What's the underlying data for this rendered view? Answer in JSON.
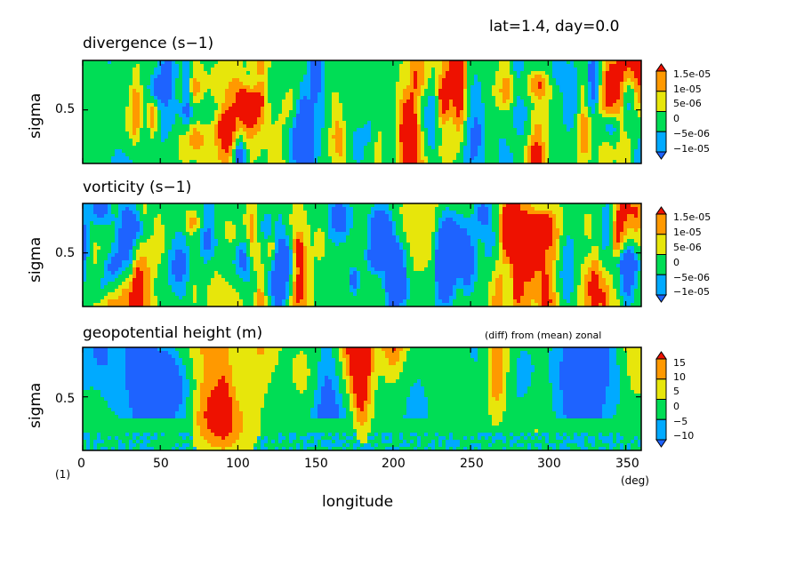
{
  "header": "lat=1.4, day=0.0",
  "footer_index": "(1)",
  "colors": [
    "#1e63ff",
    "#00aaff",
    "#00dd55",
    "#e7e60b",
    "#ff9900",
    "#ee1100"
  ],
  "chart_data": [
    {
      "type": "heatmap",
      "title": "divergence (s−1)",
      "ylabel": "sigma",
      "xlim": [
        0,
        360
      ],
      "ylim": [
        0.2,
        0.9
      ],
      "yticks": [
        "0.5"
      ],
      "levels": [
        -1.5e-05,
        -1e-05,
        -5e-06,
        0,
        5e-06,
        1e-05,
        1.5e-05
      ],
      "legend_labels": [
        "1.5e-05",
        "1e-05",
        "5e-06",
        "0",
        "−5e-06",
        "−1e-05"
      ],
      "seed": 11
    },
    {
      "type": "heatmap",
      "title": "vorticity (s−1)",
      "ylabel": "sigma",
      "xlim": [
        0,
        360
      ],
      "ylim": [
        0.2,
        0.9
      ],
      "yticks": [
        "0.5"
      ],
      "levels": [
        -1.5e-05,
        -1e-05,
        -5e-06,
        0,
        5e-06,
        1e-05,
        1.5e-05
      ],
      "legend_labels": [
        "1.5e-05",
        "1e-05",
        "5e-06",
        "0",
        "−5e-06",
        "−1e-05"
      ],
      "seed": 29
    },
    {
      "type": "heatmap",
      "title": "geopotential height (m)",
      "subtitle": "(diff) from (mean) zonal",
      "ylabel": "sigma",
      "xlabel": "longitude",
      "xunit": "(deg)",
      "xlim": [
        0,
        360
      ],
      "ylim": [
        0.2,
        0.9
      ],
      "xticks": [
        "0",
        "50",
        "100",
        "150",
        "200",
        "250",
        "300",
        "350"
      ],
      "yticks": [
        "0.5"
      ],
      "levels": [
        -15,
        -10,
        -5,
        0,
        5,
        10,
        15
      ],
      "legend_labels": [
        "15",
        "10",
        "5",
        "0",
        "−5",
        "−10"
      ],
      "seed": 47
    }
  ]
}
